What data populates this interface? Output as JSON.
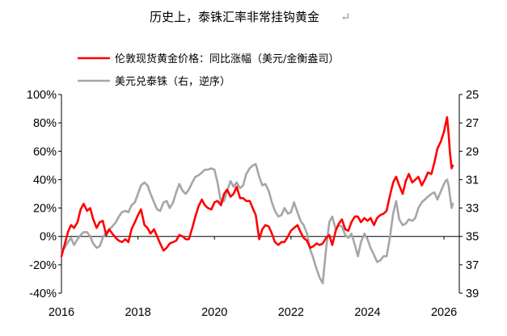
{
  "chart_data": {
    "type": "line",
    "title": "历史上，泰铢汇率非常挂钩黄金",
    "title_mark": "↵",
    "legend_placement": "top-left",
    "grid": false,
    "x_axis": {
      "range": [
        2016,
        2026.4
      ],
      "ticks": [
        2016,
        2018,
        2020,
        2022,
        2024,
        2026
      ]
    },
    "y_left": {
      "range": [
        -40,
        100
      ],
      "ticks": [
        -40,
        -20,
        0,
        20,
        40,
        60,
        80,
        100
      ],
      "tick_labels": [
        "-40%",
        "-20%",
        "0%",
        "20%",
        "40%",
        "60%",
        "80%",
        "100%"
      ]
    },
    "y_right": {
      "range": [
        39,
        25
      ],
      "inverted": true,
      "ticks": [
        25,
        27,
        29,
        31,
        33,
        35,
        37,
        39
      ]
    },
    "series": [
      {
        "name": "伦敦现货黄金价格：同比涨幅（美元/金衡盎司）",
        "color": "#ff0000",
        "axis": "left",
        "points": [
          [
            2016.0,
            -14
          ],
          [
            2016.08,
            -6
          ],
          [
            2016.17,
            3
          ],
          [
            2016.25,
            8
          ],
          [
            2016.33,
            6
          ],
          [
            2016.42,
            10
          ],
          [
            2016.5,
            19
          ],
          [
            2016.58,
            23
          ],
          [
            2016.67,
            18
          ],
          [
            2016.75,
            20
          ],
          [
            2016.83,
            12
          ],
          [
            2016.92,
            6
          ],
          [
            2017.0,
            10
          ],
          [
            2017.08,
            11
          ],
          [
            2017.17,
            1
          ],
          [
            2017.25,
            5
          ],
          [
            2017.33,
            2
          ],
          [
            2017.42,
            -1
          ],
          [
            2017.5,
            -3
          ],
          [
            2017.58,
            -4
          ],
          [
            2017.67,
            -2
          ],
          [
            2017.75,
            -4
          ],
          [
            2017.83,
            5
          ],
          [
            2017.92,
            10
          ],
          [
            2018.0,
            15
          ],
          [
            2018.08,
            19
          ],
          [
            2018.17,
            8
          ],
          [
            2018.25,
            6
          ],
          [
            2018.33,
            2
          ],
          [
            2018.42,
            5
          ],
          [
            2018.5,
            0
          ],
          [
            2018.58,
            -5
          ],
          [
            2018.67,
            -10
          ],
          [
            2018.75,
            -8
          ],
          [
            2018.83,
            -5
          ],
          [
            2018.92,
            -4
          ],
          [
            2019.0,
            -3
          ],
          [
            2019.08,
            1
          ],
          [
            2019.17,
            0
          ],
          [
            2019.25,
            -2
          ],
          [
            2019.33,
            -2
          ],
          [
            2019.42,
            6
          ],
          [
            2019.5,
            14
          ],
          [
            2019.58,
            21
          ],
          [
            2019.67,
            26
          ],
          [
            2019.75,
            22
          ],
          [
            2019.83,
            20
          ],
          [
            2019.92,
            19
          ],
          [
            2020.0,
            24
          ],
          [
            2020.08,
            25
          ],
          [
            2020.17,
            22
          ],
          [
            2020.25,
            30
          ],
          [
            2020.33,
            33
          ],
          [
            2020.42,
            28
          ],
          [
            2020.5,
            30
          ],
          [
            2020.58,
            35
          ],
          [
            2020.67,
            27
          ],
          [
            2020.75,
            27
          ],
          [
            2020.83,
            25
          ],
          [
            2020.92,
            25
          ],
          [
            2021.0,
            20
          ],
          [
            2021.08,
            15
          ],
          [
            2021.17,
            -2
          ],
          [
            2021.25,
            5
          ],
          [
            2021.33,
            8
          ],
          [
            2021.42,
            7
          ],
          [
            2021.5,
            2
          ],
          [
            2021.58,
            -4
          ],
          [
            2021.67,
            -6
          ],
          [
            2021.75,
            -4
          ],
          [
            2021.83,
            -4
          ],
          [
            2021.92,
            0
          ],
          [
            2022.0,
            4
          ],
          [
            2022.08,
            6
          ],
          [
            2022.17,
            8
          ],
          [
            2022.25,
            3
          ],
          [
            2022.33,
            -1
          ],
          [
            2022.42,
            -3
          ],
          [
            2022.5,
            -8
          ],
          [
            2022.58,
            -7
          ],
          [
            2022.67,
            -5
          ],
          [
            2022.75,
            -6
          ],
          [
            2022.83,
            -5
          ],
          [
            2022.92,
            -1
          ],
          [
            2023.0,
            1
          ],
          [
            2023.08,
            -6
          ],
          [
            2023.17,
            4
          ],
          [
            2023.25,
            9
          ],
          [
            2023.33,
            12
          ],
          [
            2023.42,
            5
          ],
          [
            2023.5,
            4
          ],
          [
            2023.58,
            10
          ],
          [
            2023.67,
            14
          ],
          [
            2023.75,
            14
          ],
          [
            2023.83,
            10
          ],
          [
            2023.92,
            13
          ],
          [
            2024.0,
            11
          ],
          [
            2024.08,
            13
          ],
          [
            2024.17,
            8
          ],
          [
            2024.25,
            13
          ],
          [
            2024.33,
            15
          ],
          [
            2024.42,
            16
          ],
          [
            2024.5,
            18
          ],
          [
            2024.58,
            28
          ],
          [
            2024.67,
            38
          ],
          [
            2024.75,
            42
          ],
          [
            2024.83,
            36
          ],
          [
            2024.92,
            30
          ],
          [
            2025.0,
            39
          ],
          [
            2025.08,
            44
          ],
          [
            2025.17,
            38
          ],
          [
            2025.25,
            40
          ],
          [
            2025.33,
            42
          ],
          [
            2025.42,
            36
          ],
          [
            2025.5,
            40
          ],
          [
            2025.58,
            45
          ],
          [
            2025.67,
            44
          ],
          [
            2025.75,
            52
          ],
          [
            2025.83,
            62
          ],
          [
            2025.92,
            67
          ],
          [
            2026.0,
            74
          ],
          [
            2026.04,
            79
          ],
          [
            2026.08,
            84
          ],
          [
            2026.12,
            72
          ],
          [
            2026.16,
            58
          ],
          [
            2026.2,
            48
          ],
          [
            2026.23,
            50
          ]
        ]
      },
      {
        "name": "美元兑泰铢（右，逆序）",
        "color": "#a6a6a6",
        "axis": "right",
        "points": [
          [
            2016.0,
            36.0
          ],
          [
            2016.08,
            35.8
          ],
          [
            2016.17,
            35.4
          ],
          [
            2016.25,
            35.1
          ],
          [
            2016.33,
            35.6
          ],
          [
            2016.42,
            35.2
          ],
          [
            2016.5,
            34.9
          ],
          [
            2016.58,
            34.7
          ],
          [
            2016.67,
            34.7
          ],
          [
            2016.75,
            35.0
          ],
          [
            2016.83,
            35.5
          ],
          [
            2016.92,
            35.8
          ],
          [
            2017.0,
            35.7
          ],
          [
            2017.08,
            35.1
          ],
          [
            2017.17,
            34.7
          ],
          [
            2017.25,
            34.5
          ],
          [
            2017.33,
            34.3
          ],
          [
            2017.42,
            34.0
          ],
          [
            2017.5,
            33.6
          ],
          [
            2017.58,
            33.3
          ],
          [
            2017.67,
            33.2
          ],
          [
            2017.75,
            33.3
          ],
          [
            2017.83,
            32.8
          ],
          [
            2017.92,
            32.6
          ],
          [
            2018.0,
            32.0
          ],
          [
            2018.08,
            31.4
          ],
          [
            2018.17,
            31.2
          ],
          [
            2018.25,
            31.4
          ],
          [
            2018.33,
            32.0
          ],
          [
            2018.42,
            32.6
          ],
          [
            2018.5,
            33.1
          ],
          [
            2018.58,
            33.2
          ],
          [
            2018.67,
            32.6
          ],
          [
            2018.75,
            32.5
          ],
          [
            2018.83,
            33.0
          ],
          [
            2018.92,
            32.6
          ],
          [
            2019.0,
            31.9
          ],
          [
            2019.08,
            31.3
          ],
          [
            2019.17,
            31.8
          ],
          [
            2019.25,
            32.0
          ],
          [
            2019.33,
            31.7
          ],
          [
            2019.42,
            31.2
          ],
          [
            2019.5,
            30.8
          ],
          [
            2019.58,
            30.7
          ],
          [
            2019.67,
            30.5
          ],
          [
            2019.75,
            30.3
          ],
          [
            2019.83,
            30.3
          ],
          [
            2019.92,
            30.2
          ],
          [
            2020.0,
            30.3
          ],
          [
            2020.08,
            31.2
          ],
          [
            2020.17,
            32.6
          ],
          [
            2020.25,
            32.5
          ],
          [
            2020.33,
            31.8
          ],
          [
            2020.42,
            31.1
          ],
          [
            2020.5,
            31.5
          ],
          [
            2020.58,
            31.2
          ],
          [
            2020.67,
            31.6
          ],
          [
            2020.75,
            31.4
          ],
          [
            2020.83,
            30.6
          ],
          [
            2020.92,
            30.2
          ],
          [
            2021.0,
            30.0
          ],
          [
            2021.08,
            29.9
          ],
          [
            2021.17,
            30.8
          ],
          [
            2021.25,
            31.4
          ],
          [
            2021.33,
            31.3
          ],
          [
            2021.42,
            31.8
          ],
          [
            2021.5,
            32.6
          ],
          [
            2021.58,
            33.2
          ],
          [
            2021.67,
            33.6
          ],
          [
            2021.75,
            33.5
          ],
          [
            2021.83,
            33.0
          ],
          [
            2021.92,
            33.4
          ],
          [
            2022.0,
            33.3
          ],
          [
            2022.08,
            32.6
          ],
          [
            2022.17,
            33.3
          ],
          [
            2022.25,
            33.9
          ],
          [
            2022.33,
            34.2
          ],
          [
            2022.42,
            34.8
          ],
          [
            2022.5,
            35.9
          ],
          [
            2022.58,
            36.5
          ],
          [
            2022.67,
            37.3
          ],
          [
            2022.75,
            37.9
          ],
          [
            2022.83,
            38.3
          ],
          [
            2022.92,
            35.8
          ],
          [
            2023.0,
            34.0
          ],
          [
            2023.08,
            33.6
          ],
          [
            2023.17,
            34.5
          ],
          [
            2023.25,
            34.2
          ],
          [
            2023.33,
            34.3
          ],
          [
            2023.42,
            34.9
          ],
          [
            2023.5,
            35.1
          ],
          [
            2023.58,
            34.8
          ],
          [
            2023.67,
            35.6
          ],
          [
            2023.75,
            36.4
          ],
          [
            2023.83,
            35.4
          ],
          [
            2023.92,
            34.8
          ],
          [
            2024.0,
            35.2
          ],
          [
            2024.08,
            35.8
          ],
          [
            2024.17,
            36.3
          ],
          [
            2024.25,
            36.8
          ],
          [
            2024.33,
            36.7
          ],
          [
            2024.42,
            36.4
          ],
          [
            2024.5,
            36.4
          ],
          [
            2024.58,
            35.2
          ],
          [
            2024.67,
            33.4
          ],
          [
            2024.75,
            32.5
          ],
          [
            2024.83,
            33.8
          ],
          [
            2024.92,
            34.2
          ],
          [
            2025.0,
            34.1
          ],
          [
            2025.08,
            33.8
          ],
          [
            2025.17,
            33.9
          ],
          [
            2025.25,
            33.7
          ],
          [
            2025.33,
            33.0
          ],
          [
            2025.42,
            32.6
          ],
          [
            2025.5,
            32.4
          ],
          [
            2025.58,
            32.2
          ],
          [
            2025.67,
            32.0
          ],
          [
            2025.75,
            31.9
          ],
          [
            2025.83,
            32.4
          ],
          [
            2025.92,
            31.8
          ],
          [
            2026.0,
            31.3
          ],
          [
            2026.04,
            31.1
          ],
          [
            2026.08,
            31.0
          ],
          [
            2026.12,
            31.4
          ],
          [
            2026.16,
            32.2
          ],
          [
            2026.2,
            33.0
          ],
          [
            2026.23,
            32.7
          ]
        ]
      }
    ]
  }
}
